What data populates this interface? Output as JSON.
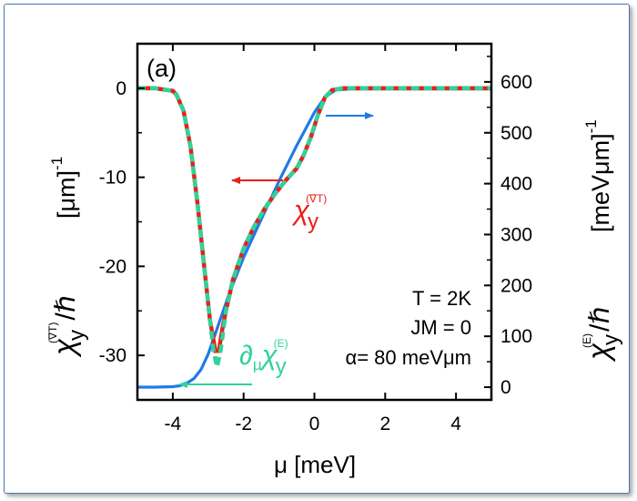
{
  "chart_data": {
    "type": "line",
    "panel_label": "(a)",
    "xlabel": "μ [meV]",
    "xlim": [
      -5,
      5
    ],
    "x_ticks": [
      -4,
      -2,
      0,
      2,
      4
    ],
    "x_tick_labels": [
      "-4",
      "-2",
      "0",
      "2",
      "4"
    ],
    "left_axis": {
      "label_chi": "χ",
      "label_sub": "y",
      "label_sup": "(∇T)",
      "label_tail": "/ℏ",
      "label_units": "[μm]",
      "label_units_exp": "-1",
      "ylim": [
        -35,
        5
      ],
      "ticks": [
        0,
        -10,
        -20,
        -30
      ],
      "tick_labels": [
        "0",
        "-10",
        "-20",
        "-30"
      ]
    },
    "right_axis": {
      "label_chi": "χ",
      "label_sub": "y",
      "label_sup": "(E)",
      "label_tail": "/ℏ",
      "label_units": "[meVμm]",
      "label_units_exp": "-1",
      "ylim": [
        -25,
        675
      ],
      "ticks": [
        0,
        100,
        200,
        300,
        400,
        500,
        600
      ],
      "tick_labels": [
        "0",
        "100",
        "200",
        "300",
        "400",
        "500",
        "600"
      ]
    },
    "series": [
      {
        "name": "chi_y^(E) (right axis)",
        "axis": "right",
        "color": "#1f7ae8",
        "style": "solid",
        "x": [
          -5,
          -4.5,
          -4.0,
          -3.8,
          -3.6,
          -3.4,
          -3.2,
          -3.0,
          -2.8,
          -2.6,
          -2.4,
          -2.2,
          -2.0,
          -1.5,
          -1.0,
          -0.5,
          0.0,
          0.3,
          0.6,
          1.0,
          2.0,
          3.0,
          4.0,
          5.0
        ],
        "y": [
          0,
          0,
          1,
          3,
          8,
          17,
          35,
          65,
          105,
          145,
          185,
          220,
          255,
          330,
          405,
          475,
          540,
          570,
          584,
          586,
          586,
          586,
          586,
          586
        ]
      },
      {
        "name": "chi_y^(∇T) (left axis)",
        "axis": "left",
        "color": "#e8201a",
        "style": "solid",
        "x": [
          -5,
          -4.5,
          -4.0,
          -3.9,
          -3.7,
          -3.5,
          -3.3,
          -3.1,
          -2.95,
          -2.8,
          -2.7,
          -2.6,
          -2.5,
          -2.3,
          -2.0,
          -1.7,
          -1.4,
          -1.1,
          -0.8,
          -0.5,
          -0.3,
          -0.1,
          0.1,
          0.3,
          0.5,
          0.8,
          1.2,
          2.0,
          3.0,
          4.0,
          5.0
        ],
        "y": [
          0,
          0,
          -0.3,
          -0.7,
          -2.5,
          -6.5,
          -13,
          -20.5,
          -26,
          -29.5,
          -29.5,
          -27,
          -25,
          -21.5,
          -18,
          -15.5,
          -13.5,
          -11.8,
          -10.3,
          -9,
          -7.5,
          -5.5,
          -3,
          -1,
          -0.2,
          0,
          0,
          0,
          0,
          0,
          0
        ]
      },
      {
        "name": "∂_μ chi_y^(E) (left axis)",
        "axis": "left",
        "color": "#2fd39a",
        "style": "dashed",
        "x": [
          -5,
          -4.5,
          -4.0,
          -3.9,
          -3.7,
          -3.5,
          -3.3,
          -3.1,
          -2.95,
          -2.85,
          -2.75,
          -2.65,
          -2.5,
          -2.3,
          -2.0,
          -1.7,
          -1.4,
          -1.1,
          -0.8,
          -0.5,
          -0.3,
          -0.1,
          0.1,
          0.3,
          0.5,
          0.8,
          1.2,
          2.0,
          3.0,
          4.0,
          5.0
        ],
        "y": [
          0,
          0,
          -0.3,
          -0.7,
          -2.5,
          -6.5,
          -13,
          -20.5,
          -26,
          -29.5,
          -31.3,
          -29.5,
          -25,
          -21.5,
          -18,
          -15.5,
          -13.5,
          -11.8,
          -10.3,
          -9,
          -7.5,
          -5.5,
          -3,
          -1,
          -0.2,
          0,
          0,
          0,
          0,
          0,
          0
        ]
      }
    ],
    "annotations": {
      "params": [
        "T = 2K",
        "JM = 0",
        "α= 80 meVμm"
      ],
      "label_gradT": {
        "chi": "χ",
        "sub": "y",
        "sup": "(∇T)"
      },
      "label_dmu": {
        "partial": "∂",
        "partial_sub": "μ",
        "chi": "χ",
        "sub": "y",
        "sup": "(E)"
      }
    }
  }
}
